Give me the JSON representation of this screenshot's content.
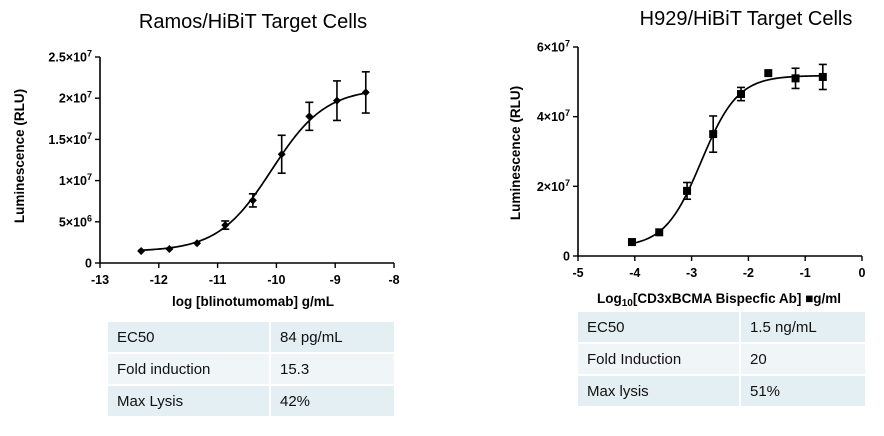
{
  "chart_data": [
    {
      "type": "scatter",
      "title": "Ramos/HiBiT Target Cells",
      "xlabel": "log [blinotumomab] g/mL",
      "ylabel": "Luminescence (RLU)",
      "xlim": [
        -13,
        -8
      ],
      "ylim": [
        0,
        25000000
      ],
      "xticks": [
        -13,
        -12,
        -11,
        -10,
        -9,
        -8
      ],
      "xtick_labels": [
        "-13",
        "-12",
        "-11",
        "-10",
        "-9",
        "-8"
      ],
      "yticks": [
        0,
        5000000,
        10000000,
        15000000,
        20000000,
        25000000
      ],
      "ytick_labels": [
        {
          "base": "0",
          "exp": ""
        },
        {
          "base": "5×10",
          "exp": "6"
        },
        {
          "base": "1×10",
          "exp": "7"
        },
        {
          "base": "1.5×10",
          "exp": "7"
        },
        {
          "base": "2×10",
          "exp": "7"
        },
        {
          "base": "2.5×10",
          "exp": "7"
        }
      ],
      "marker": "diamond",
      "fit": "sigmoidal 4PL",
      "fit_params": {
        "bottom": 1400000,
        "top": 21200000,
        "logEC50": -10.08,
        "hill": 0.95
      },
      "x": [
        -12.3,
        -11.82,
        -11.35,
        -10.87,
        -10.4,
        -9.91,
        -9.44,
        -8.97,
        -8.48
      ],
      "y": [
        1450000,
        1700000,
        2400000,
        4600000,
        7600000,
        13200000,
        17800000,
        19700000,
        20700000
      ],
      "err": [
        0,
        0,
        0,
        500000,
        800000,
        2300000,
        1700000,
        2400000,
        2500000
      ],
      "stats": [
        {
          "label": "EC50",
          "value": "84 pg/mL"
        },
        {
          "label": "Fold induction",
          "value": "15.3"
        },
        {
          "label": "Max Lysis",
          "value": "42%"
        }
      ]
    },
    {
      "type": "scatter",
      "title": "H929/HiBiT Target Cells",
      "xlabel_main": "Log",
      "xlabel_sub": "10",
      "xlabel_rest": "[CD3xBCMA Bispecfic Ab] ",
      "xlabel_unit": "g/ml",
      "ylabel": "Luminescence (RLU)",
      "xlim": [
        -5,
        0
      ],
      "ylim": [
        0,
        60000000
      ],
      "xticks": [
        -5,
        -4,
        -3,
        -2,
        -1,
        0
      ],
      "xtick_labels": [
        "-5",
        "-4",
        "-3",
        "-2",
        "-1",
        "0"
      ],
      "yticks": [
        0,
        20000000,
        40000000,
        60000000
      ],
      "ytick_labels": [
        {
          "base": "0",
          "exp": ""
        },
        {
          "base": "2×10",
          "exp": "7"
        },
        {
          "base": "4×10",
          "exp": "7"
        },
        {
          "base": "6×10",
          "exp": "7"
        }
      ],
      "marker": "square",
      "fit": "sigmoidal 4PL",
      "fit_params": {
        "bottom": 2500000,
        "top": 51800000,
        "logEC50": -2.83,
        "hill": 1.35
      },
      "x": [
        -4.05,
        -3.57,
        -3.08,
        -2.62,
        -2.13,
        -1.65,
        -1.17,
        -0.69
      ],
      "y": [
        4000000,
        6800000,
        18700000,
        35000000,
        46500000,
        52500000,
        51000000,
        51400000
      ],
      "err": [
        0,
        0,
        2400000,
        5200000,
        1900000,
        0,
        2900000,
        3600000
      ],
      "stats": [
        {
          "label": "EC50",
          "value": "1.5 ng/mL"
        },
        {
          "label": "Fold Induction",
          "value": "20"
        },
        {
          "label": "Max lysis",
          "value": "51%"
        }
      ]
    }
  ]
}
